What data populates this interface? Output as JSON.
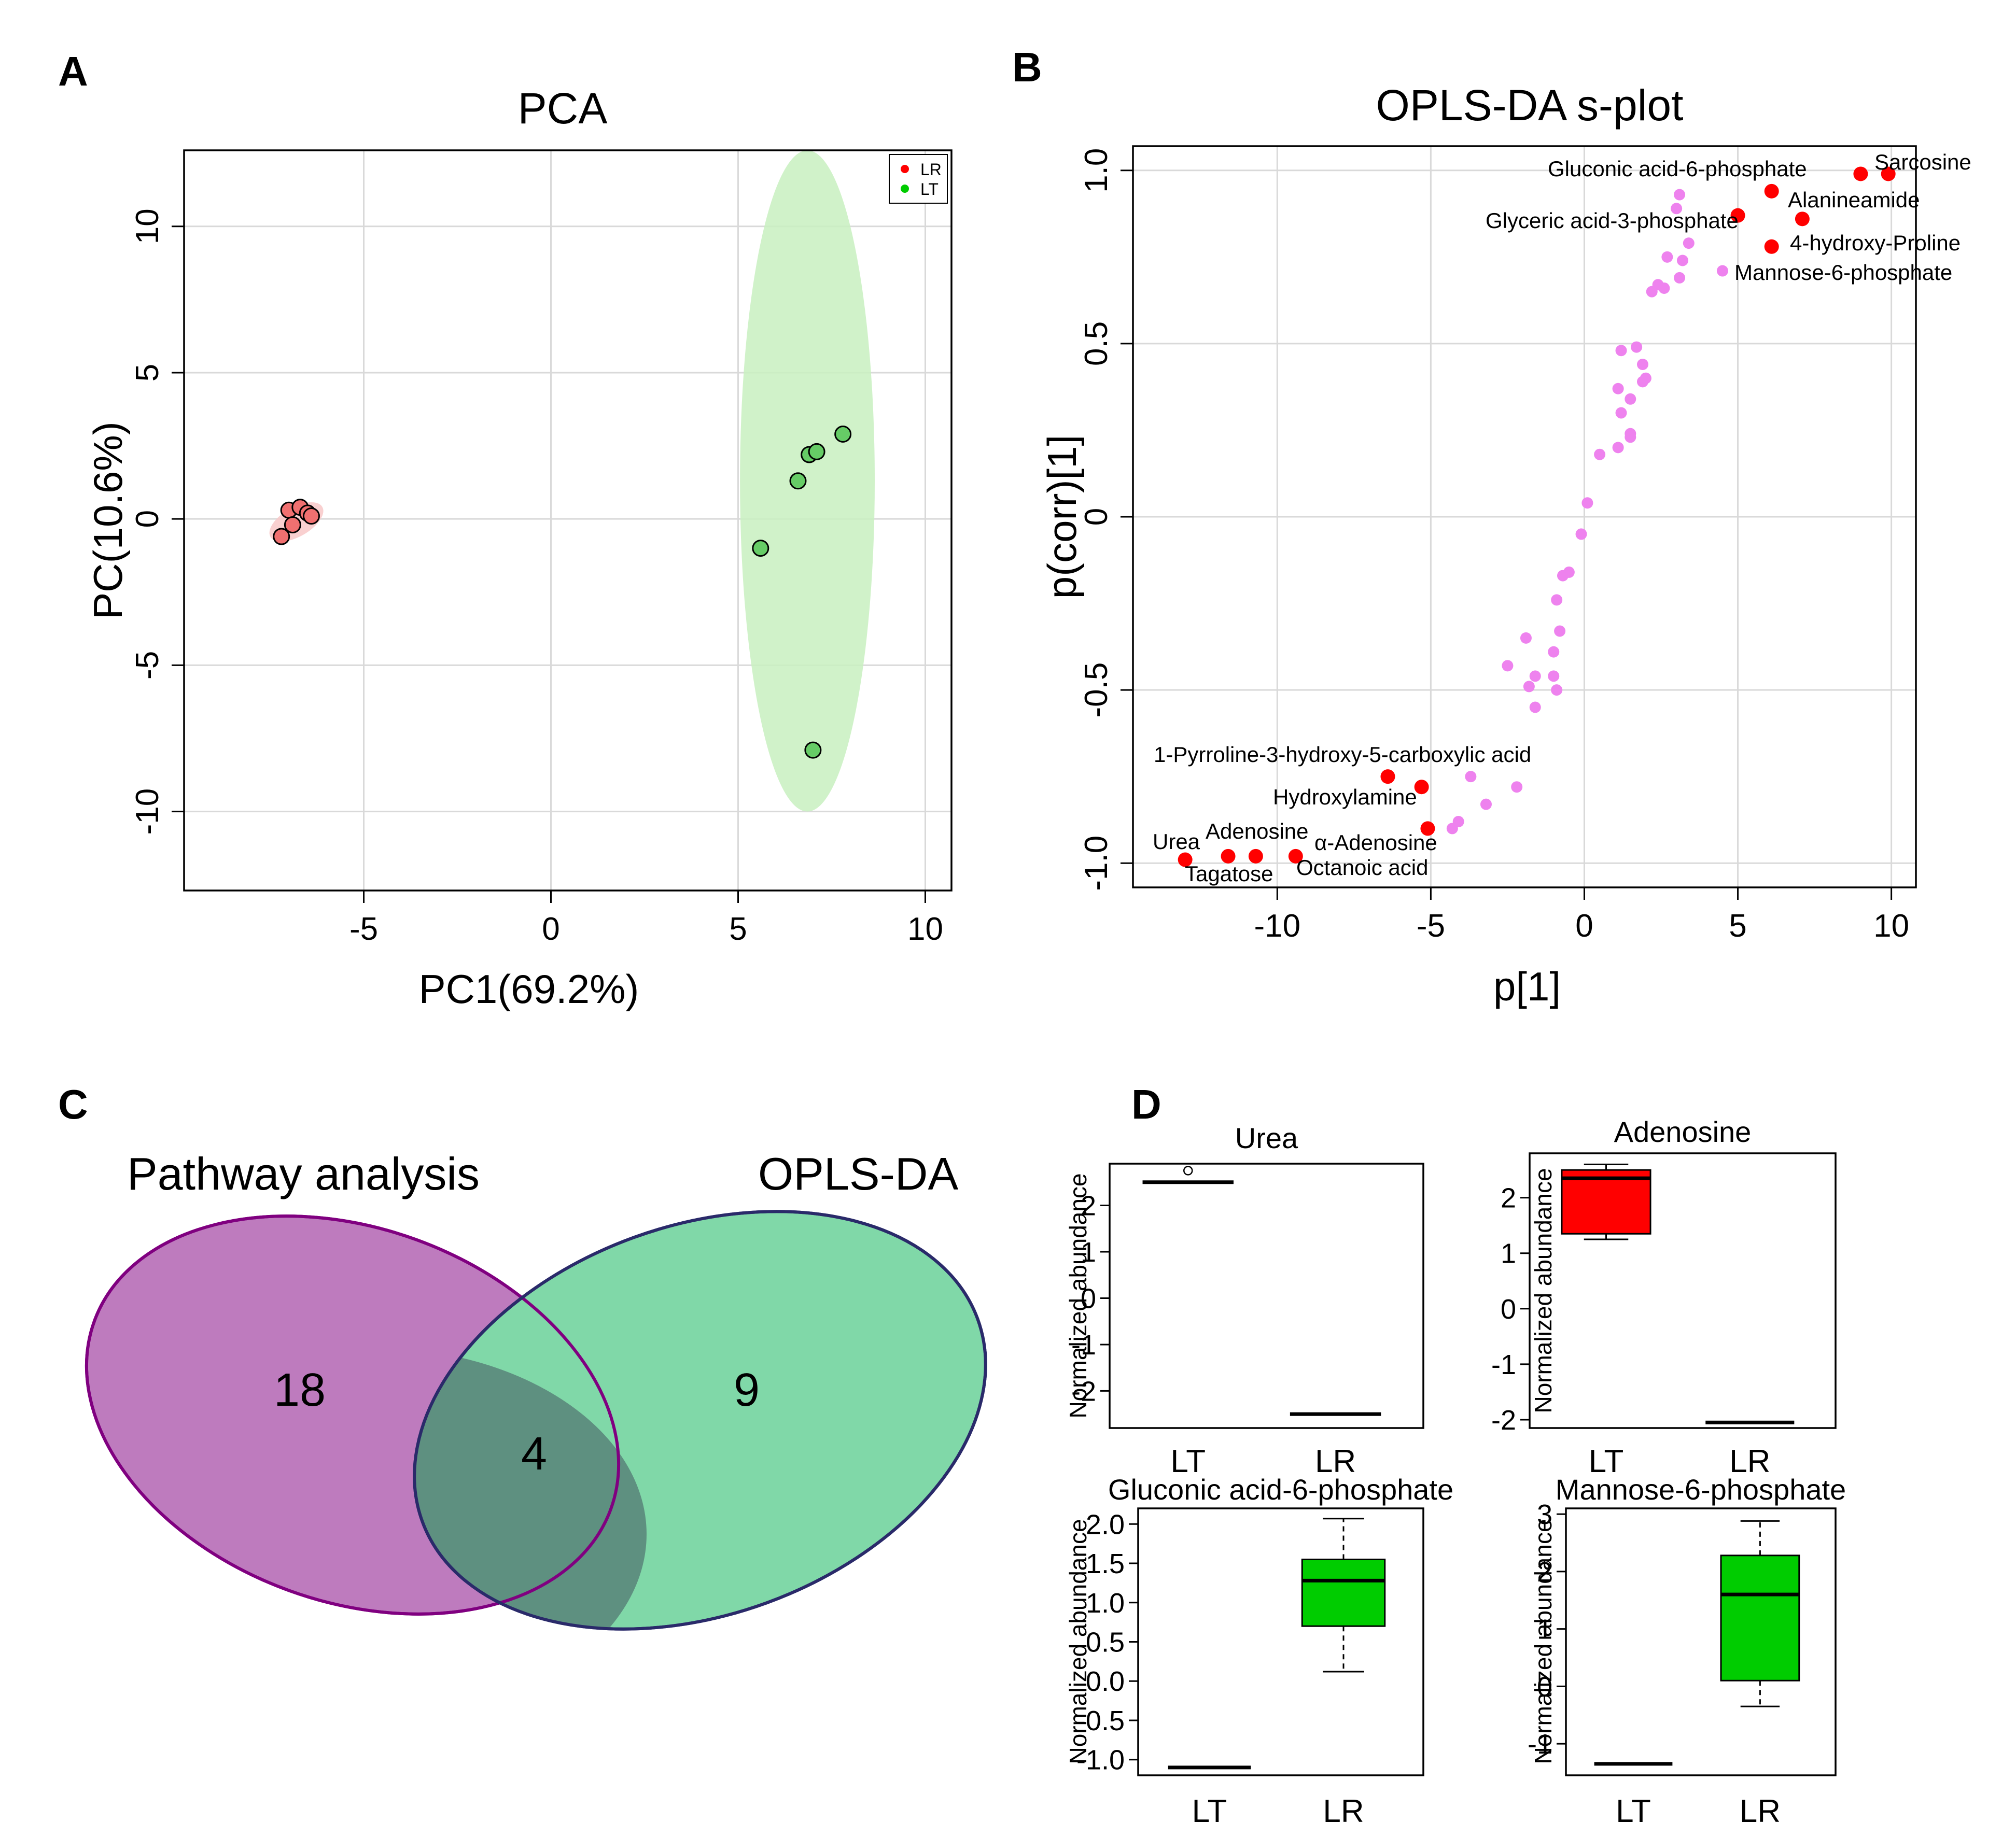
{
  "panels": {
    "a": "A",
    "b": "B",
    "c": "C",
    "d": "D"
  },
  "chart_data": [
    {
      "id": "pca",
      "type": "scatter",
      "title": "PCA",
      "xlabel": "PC1(69.2%)",
      "ylabel": "PC(10.6%)",
      "xlim": [
        -9.8,
        10.7
      ],
      "ylim": [
        -12.7,
        12.6
      ],
      "xticks": [
        -5,
        0,
        5,
        10
      ],
      "yticks": [
        -10,
        -5,
        0,
        5,
        10
      ],
      "grid": true,
      "legend": {
        "position": "top-right",
        "entries": [
          {
            "label": "LR",
            "color": "#ff0000"
          },
          {
            "label": "LT",
            "color": "#00cc00"
          }
        ]
      },
      "series": [
        {
          "name": "LR",
          "color": "#ff0000",
          "fill": "#f07070",
          "points": [
            [
              -7.0,
              0.3
            ],
            [
              -6.7,
              0.4
            ],
            [
              -6.5,
              0.2
            ],
            [
              -6.4,
              0.1
            ],
            [
              -6.9,
              -0.2
            ],
            [
              -7.2,
              -0.6
            ]
          ],
          "ellipse": {
            "cx": -6.8,
            "cy": -0.1,
            "rx": 0.8,
            "ry": 0.5,
            "angle_deg": 30,
            "color": "#f8c8c8"
          }
        },
        {
          "name": "LT",
          "color": "#00cc00",
          "fill": "#66cc66",
          "points": [
            [
              5.6,
              -1.0
            ],
            [
              6.6,
              1.3
            ],
            [
              6.9,
              2.2
            ],
            [
              7.1,
              2.3
            ],
            [
              7.8,
              2.9
            ],
            [
              7.0,
              -7.9
            ]
          ],
          "ellipse": {
            "cx": 6.85,
            "cy": 1.3,
            "rx": 1.8,
            "ry": 11.3,
            "angle_deg": 0,
            "color": "#c8f0c0"
          }
        }
      ]
    },
    {
      "id": "splot",
      "type": "scatter",
      "title": "OPLS-DA s-plot",
      "xlabel": "p[1]",
      "ylabel": "p(corr)[1]",
      "xlim": [
        -14.7,
        10.8
      ],
      "ylim": [
        -1.07,
        1.07
      ],
      "xticks": [
        -10,
        -5,
        0,
        5,
        10
      ],
      "yticks": [
        -1.0,
        -0.5,
        0,
        0.5,
        1.0
      ],
      "ytick_labels": [
        "-1.0",
        "-0.5",
        "0",
        "0.5",
        "1.0"
      ],
      "grid": true,
      "background_points": [
        [
          3.1,
          0.93
        ],
        [
          3.0,
          0.89
        ],
        [
          3.4,
          0.79
        ],
        [
          2.7,
          0.75
        ],
        [
          3.2,
          0.74
        ],
        [
          3.1,
          0.69
        ],
        [
          4.5,
          0.71
        ],
        [
          2.4,
          0.67
        ],
        [
          2.6,
          0.66
        ],
        [
          2.2,
          0.65
        ],
        [
          1.7,
          0.49
        ],
        [
          1.2,
          0.48
        ],
        [
          1.9,
          0.44
        ],
        [
          2.0,
          0.4
        ],
        [
          1.9,
          0.39
        ],
        [
          1.1,
          0.37
        ],
        [
          1.5,
          0.34
        ],
        [
          1.2,
          0.3
        ],
        [
          1.5,
          0.24
        ],
        [
          1.5,
          0.23
        ],
        [
          1.1,
          0.2
        ],
        [
          0.5,
          0.18
        ],
        [
          0.1,
          0.04
        ],
        [
          -0.1,
          -0.05
        ],
        [
          -0.5,
          -0.16
        ],
        [
          -0.7,
          -0.17
        ],
        [
          -0.9,
          -0.24
        ],
        [
          -0.8,
          -0.33
        ],
        [
          -1.9,
          -0.35
        ],
        [
          -1.0,
          -0.39
        ],
        [
          -2.5,
          -0.43
        ],
        [
          -1.6,
          -0.46
        ],
        [
          -1.0,
          -0.46
        ],
        [
          -1.8,
          -0.49
        ],
        [
          -0.9,
          -0.5
        ],
        [
          -1.6,
          -0.55
        ],
        [
          -3.7,
          -0.75
        ],
        [
          -2.2,
          -0.78
        ],
        [
          -3.2,
          -0.83
        ],
        [
          -4.1,
          -0.88
        ],
        [
          -4.3,
          -0.9
        ]
      ],
      "highlighted": [
        {
          "label": "Sarcosine",
          "x": 9.9,
          "y": 0.99
        },
        {
          "label": "Gluconic acid-6-phosphate",
          "x": 9.0,
          "y": 0.99
        },
        {
          "label": "Alanineamide",
          "x": 6.1,
          "y": 0.94
        },
        {
          "label": "Glyceric acid-3-phosphate",
          "x": 5.0,
          "y": 0.87
        },
        {
          "label": "4-hydroxy-Proline",
          "x": 7.1,
          "y": 0.86
        },
        {
          "label": "Mannose-6-phosphate",
          "x": 6.1,
          "y": 0.78
        },
        {
          "label": "1-Pyrroline-3-hydroxy-5-carboxylic acid",
          "x": -6.4,
          "y": -0.75
        },
        {
          "label": "Hydroxylamine",
          "x": -5.3,
          "y": -0.78
        },
        {
          "label": "α-Adenosine",
          "x": -5.1,
          "y": -0.9
        },
        {
          "label": "Adenosine",
          "x": -10.7,
          "y": -0.98
        },
        {
          "label": "Urea",
          "x": -13.0,
          "y": -0.99
        },
        {
          "label": "Tagatose",
          "x": -11.6,
          "y": -0.98
        },
        {
          "label": "Octanoic acid",
          "x": -9.4,
          "y": -0.98
        }
      ]
    },
    {
      "id": "venn",
      "type": "venn",
      "sets": [
        {
          "name": "Pathway analysis",
          "only": 18,
          "color": "#be7bbe",
          "edge": "#800080"
        },
        {
          "name": "OPLS-DA",
          "only": 9,
          "color": "#80d8a8",
          "edge": "#2a2a6a"
        }
      ],
      "intersection": 4,
      "intersection_color": "#5e9080"
    },
    {
      "id": "box-urea",
      "type": "box",
      "title": "Urea",
      "ylabel": "Normalized abundance",
      "categories": [
        "LT",
        "LR"
      ],
      "ylim": [
        -2.8,
        2.9
      ],
      "yticks": [
        2,
        1,
        0,
        -1,
        -2
      ],
      "ytick_labels": [
        "2",
        "1",
        "0",
        "-1",
        "-2"
      ],
      "boxes": [
        {
          "min": 2.5,
          "q1": 2.5,
          "median": 2.5,
          "q3": 2.5,
          "max": 2.5,
          "outliers": [
            2.75
          ],
          "color": "#ffffff"
        },
        {
          "min": -2.5,
          "q1": -2.5,
          "median": -2.5,
          "q3": -2.5,
          "max": -2.5,
          "outliers": [],
          "color": "#ffffff"
        }
      ]
    },
    {
      "id": "box-adenosine",
      "type": "box",
      "title": "Adenosine",
      "ylabel": "Normalized abundance",
      "categories": [
        "LT",
        "LR"
      ],
      "ylim": [
        -2.15,
        2.8
      ],
      "yticks": [
        2,
        1,
        0,
        -1,
        -2
      ],
      "ytick_labels": [
        "2",
        "1",
        "0",
        "-1",
        "-2"
      ],
      "boxes": [
        {
          "min": 1.25,
          "q1": 1.35,
          "median": 2.35,
          "q3": 2.5,
          "max": 2.6,
          "outliers": [],
          "color": "#ff0000"
        },
        {
          "min": -2.05,
          "q1": -2.05,
          "median": -2.05,
          "q3": -2.05,
          "max": -2.05,
          "outliers": [],
          "color": "#ffffff"
        }
      ]
    },
    {
      "id": "box-gluconic",
      "type": "box",
      "title": "Gluconic acid-6-phosphate",
      "ylabel": "Normalized abundance",
      "categories": [
        "LT",
        "LR"
      ],
      "ylim": [
        -1.2,
        2.2
      ],
      "yticks": [
        2.0,
        1.5,
        1.0,
        0.5,
        0.0,
        -0.5,
        -1.0
      ],
      "ytick_labels": [
        "2.0",
        "1.5",
        "1.0",
        "0.5",
        "0.0",
        "-0.5",
        "-1.0"
      ],
      "boxes": [
        {
          "min": -1.1,
          "q1": -1.1,
          "median": -1.1,
          "q3": -1.1,
          "max": -1.1,
          "outliers": [],
          "color": "#ffffff"
        },
        {
          "min": 0.12,
          "q1": 0.7,
          "median": 1.28,
          "q3": 1.55,
          "max": 2.07,
          "outliers": [],
          "color": "#00cc00"
        }
      ]
    },
    {
      "id": "box-mannose",
      "type": "box",
      "title": "Mannose-6-phosphate",
      "ylabel": "Normalized abundance",
      "categories": [
        "LT",
        "LR"
      ],
      "ylim": [
        -1.55,
        3.1
      ],
      "yticks": [
        3,
        2,
        1,
        0,
        -1
      ],
      "ytick_labels": [
        "3",
        "2",
        "1",
        "0",
        "-1"
      ],
      "boxes": [
        {
          "min": -1.35,
          "q1": -1.35,
          "median": -1.35,
          "q3": -1.35,
          "max": -1.35,
          "outliers": [],
          "color": "#ffffff"
        },
        {
          "min": -0.35,
          "q1": 0.1,
          "median": 1.6,
          "q3": 2.28,
          "max": 2.88,
          "outliers": [],
          "color": "#00cc00"
        }
      ]
    }
  ]
}
